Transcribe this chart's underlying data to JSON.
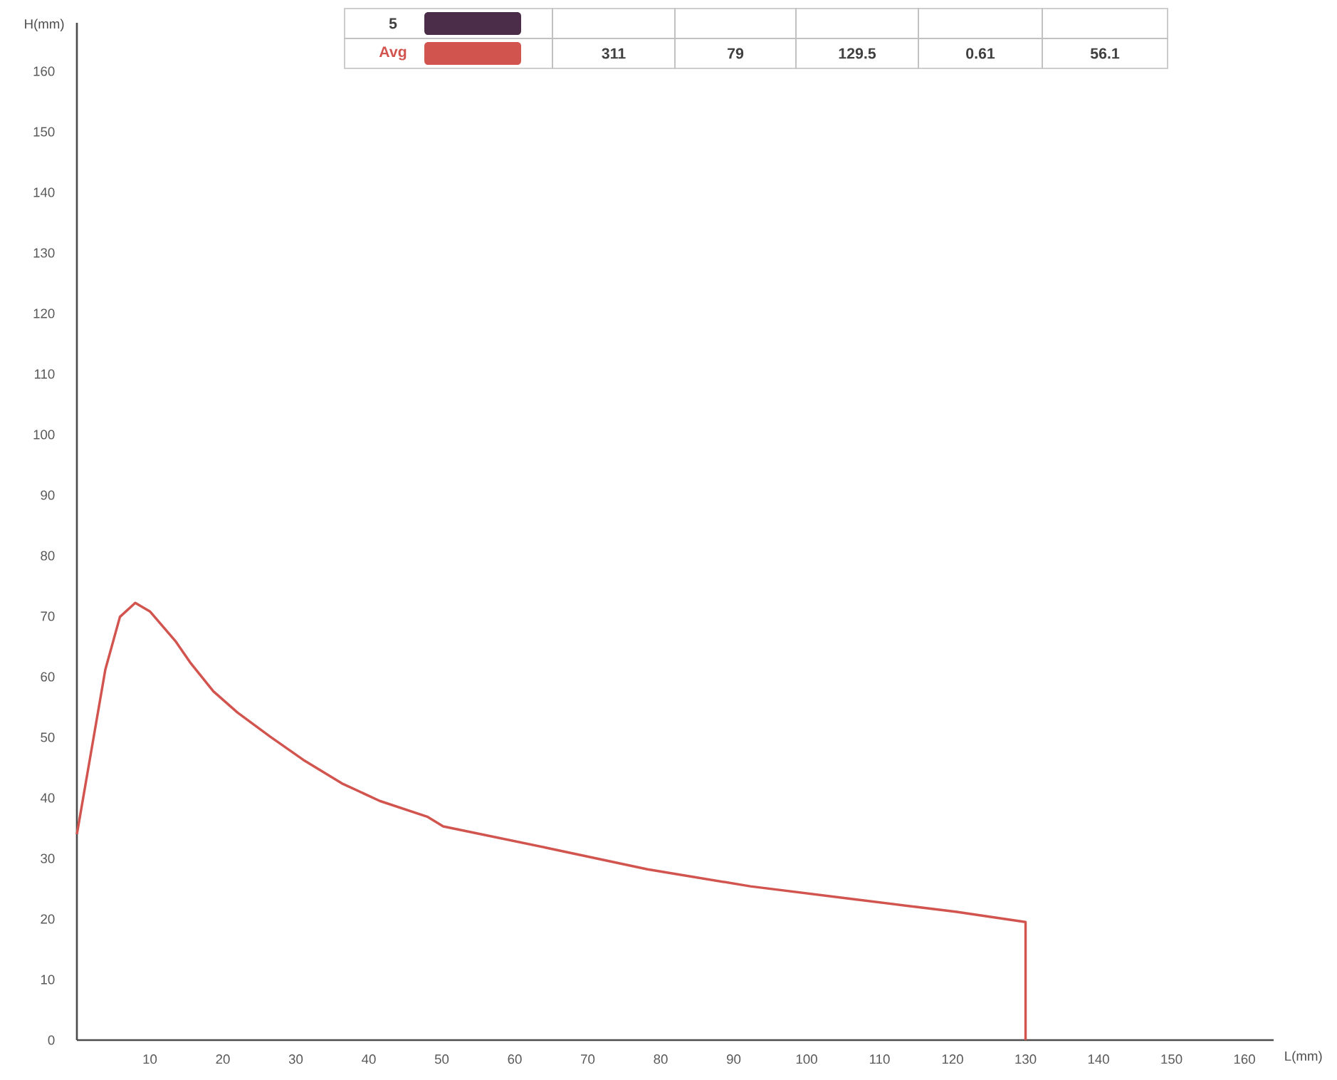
{
  "chart_data": {
    "type": "line",
    "xlabel": "L(mm)",
    "ylabel": "H(mm)",
    "xlim": [
      0,
      164
    ],
    "ylim": [
      0,
      168
    ],
    "xticks": [
      10,
      20,
      30,
      40,
      50,
      60,
      70,
      80,
      90,
      100,
      110,
      120,
      130,
      140,
      150,
      160
    ],
    "yticks": [
      0,
      10,
      20,
      30,
      40,
      50,
      60,
      70,
      80,
      90,
      100,
      110,
      120,
      130,
      140,
      150,
      160
    ],
    "legend": "top",
    "series": [
      {
        "name": "5",
        "color": "#4b2d4a"
      },
      {
        "name": "Avg",
        "color": "#d2544e",
        "x": [
          0,
          3.9,
          5.9,
          8.0,
          10,
          13.5,
          15.5,
          18.7,
          22,
          26.5,
          31,
          36.3,
          41.5,
          48,
          50.2,
          64.2,
          78.2,
          92.3,
          106.3,
          120.4,
          130,
          130
        ],
        "values": [
          34,
          61.2,
          69.9,
          72.2,
          70.8,
          65.9,
          62.4,
          57.6,
          54.1,
          50.1,
          46.3,
          42.4,
          39.5,
          36.9,
          35.3,
          31.8,
          28.2,
          25.4,
          23.3,
          21.2,
          19.5,
          0
        ]
      }
    ],
    "annotations": [
      "311",
      "79",
      "129.5",
      "0.61",
      "56.1"
    ]
  }
}
